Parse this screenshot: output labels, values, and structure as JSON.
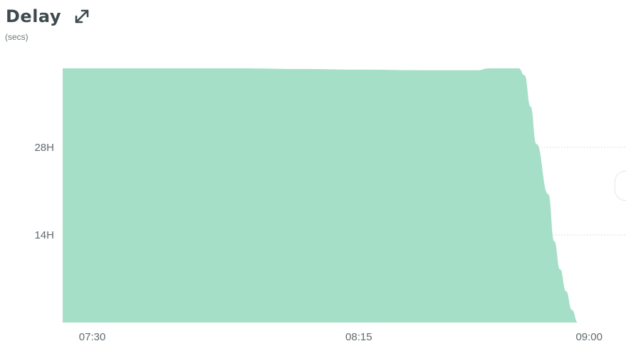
{
  "header": {
    "title": "Delay",
    "subtitle": "(secs)",
    "expand_icon": "expand-diagonal-icon"
  },
  "colors": {
    "area_fill": "#a6dfc7",
    "grid": "#cfd8d3",
    "title": "#3f4a4f",
    "tick": "#5f6a6e"
  },
  "chart_data": {
    "type": "area",
    "title": "Delay",
    "ylabel": "(secs)",
    "xlabel": "",
    "x_ticks": [
      "07:30",
      "08:15",
      "09:00"
    ],
    "y_ticks": [
      "14H",
      "28H"
    ],
    "grid": "horizontal dotted",
    "legend": "none",
    "xlim": [
      "07:25",
      "09:00"
    ],
    "ylim": [
      0,
      40.6
    ],
    "x": [
      "07:25",
      "07:35",
      "07:45",
      "07:55",
      "08:05",
      "08:15",
      "08:25",
      "08:35",
      "08:37",
      "08:39",
      "08:42",
      "08:43",
      "08:44",
      "08:45",
      "08:47",
      "08:48",
      "08:49",
      "08:50",
      "08:51",
      "08:52"
    ],
    "y": [
      40.7,
      40.7,
      40.7,
      40.6,
      40.5,
      40.4,
      40.3,
      40.3,
      40.8,
      41.1,
      41.1,
      39.5,
      34.5,
      28.5,
      20.5,
      13.0,
      8.5,
      5.0,
      2.0,
      0
    ]
  }
}
